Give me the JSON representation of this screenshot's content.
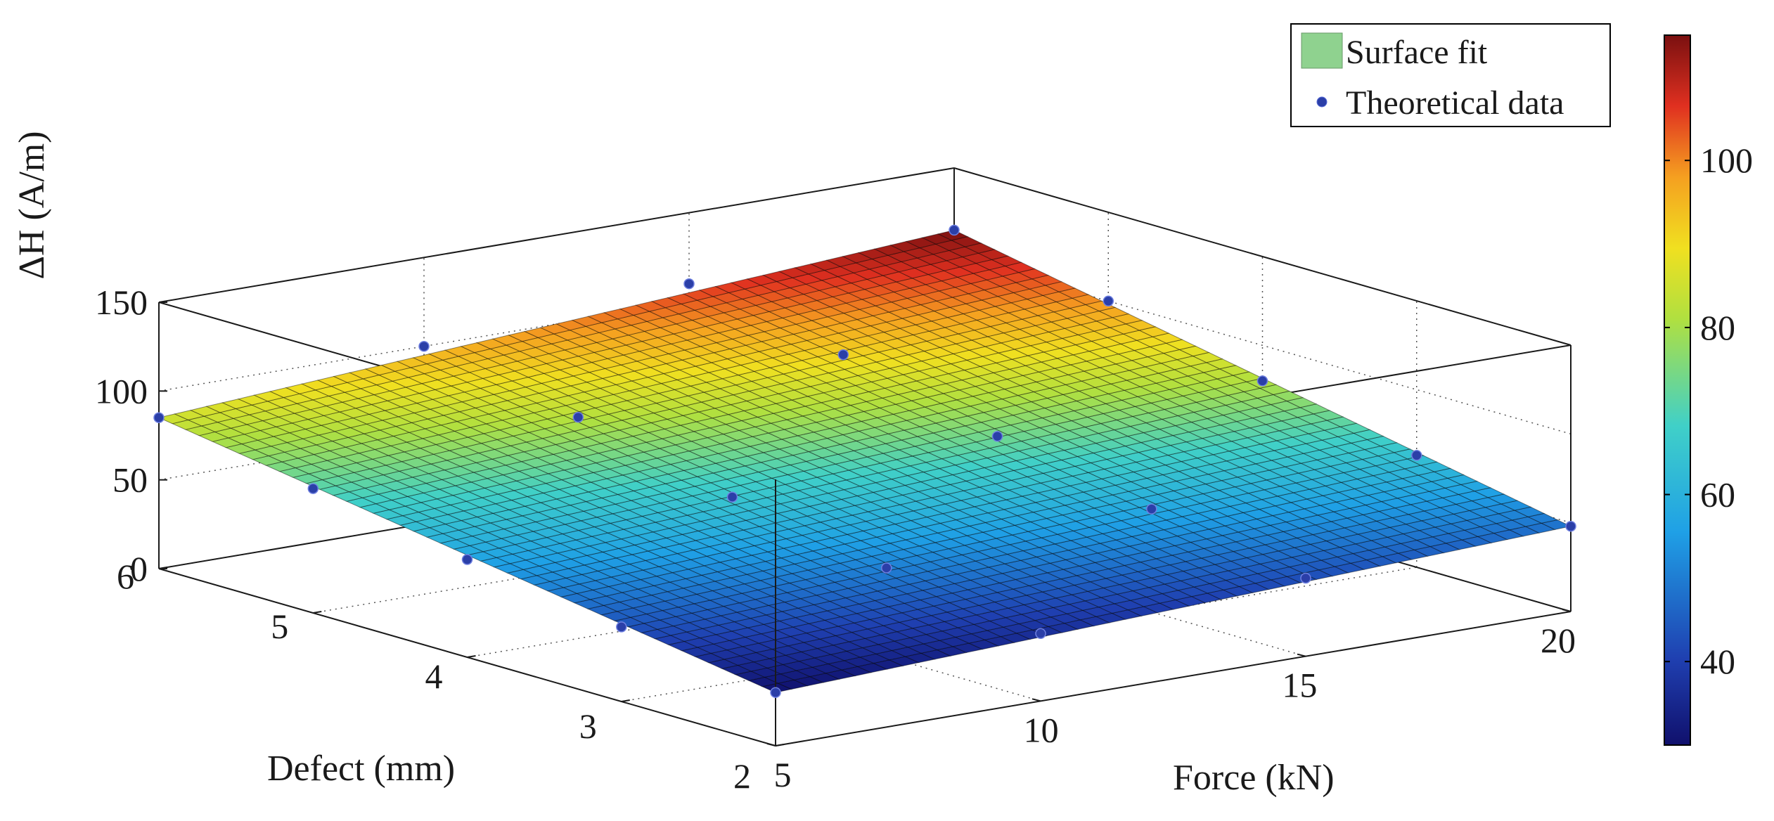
{
  "chart_data": {
    "type": "surface3d",
    "title": "",
    "x_axis": {
      "label": "Force (kN)",
      "range": [
        5,
        20
      ],
      "ticks": [
        5,
        10,
        15,
        20
      ]
    },
    "y_axis": {
      "label": "Defect (mm)",
      "range": [
        2,
        6
      ],
      "ticks": [
        2,
        3,
        4,
        5,
        6
      ]
    },
    "z_axis": {
      "label": "ΔH (A/m)",
      "range": [
        0,
        150
      ],
      "ticks": [
        0,
        50,
        100,
        150
      ]
    },
    "colorbar": {
      "range": [
        30,
        115
      ],
      "ticks": [
        40,
        60,
        80,
        100
      ],
      "colormap": "jet"
    },
    "legend": {
      "placement": "top-right",
      "entries": [
        {
          "label": "Surface fit",
          "color": "#8fd28f",
          "kind": "patch"
        },
        {
          "label": "Theoretical data",
          "color": "#2b3fa8",
          "kind": "marker"
        }
      ]
    },
    "surface_fit": {
      "model": "planar",
      "z_at_force5_defect2": 30,
      "z_at_force5_defect6": 85,
      "z_at_force20_defect2": 48,
      "z_at_force20_defect6": 115
    },
    "series": [
      {
        "name": "Theoretical data",
        "points": [
          {
            "force": 5,
            "defect": 6,
            "dH": 85
          },
          {
            "force": 10,
            "defect": 6,
            "dH": 100
          },
          {
            "force": 15,
            "defect": 6,
            "dH": 110
          },
          {
            "force": 20,
            "defect": 6,
            "dH": 115
          },
          {
            "force": 5,
            "defect": 5,
            "dH": 70
          },
          {
            "force": 10,
            "defect": 5,
            "dH": 85
          },
          {
            "force": 15,
            "defect": 5,
            "dH": 95
          },
          {
            "force": 20,
            "defect": 5,
            "dH": 100
          },
          {
            "force": 5,
            "defect": 4,
            "dH": 55
          },
          {
            "force": 10,
            "defect": 4,
            "dH": 65
          },
          {
            "force": 15,
            "defect": 4,
            "dH": 74
          },
          {
            "force": 20,
            "defect": 4,
            "dH": 80
          },
          {
            "force": 5,
            "defect": 3,
            "dH": 42
          },
          {
            "force": 10,
            "defect": 3,
            "dH": 50
          },
          {
            "force": 15,
            "defect": 3,
            "dH": 58
          },
          {
            "force": 20,
            "defect": 3,
            "dH": 63
          },
          {
            "force": 5,
            "defect": 2,
            "dH": 30
          },
          {
            "force": 10,
            "defect": 2,
            "dH": 38
          },
          {
            "force": 15,
            "defect": 2,
            "dH": 44
          },
          {
            "force": 20,
            "defect": 2,
            "dH": 48
          }
        ]
      }
    ]
  }
}
